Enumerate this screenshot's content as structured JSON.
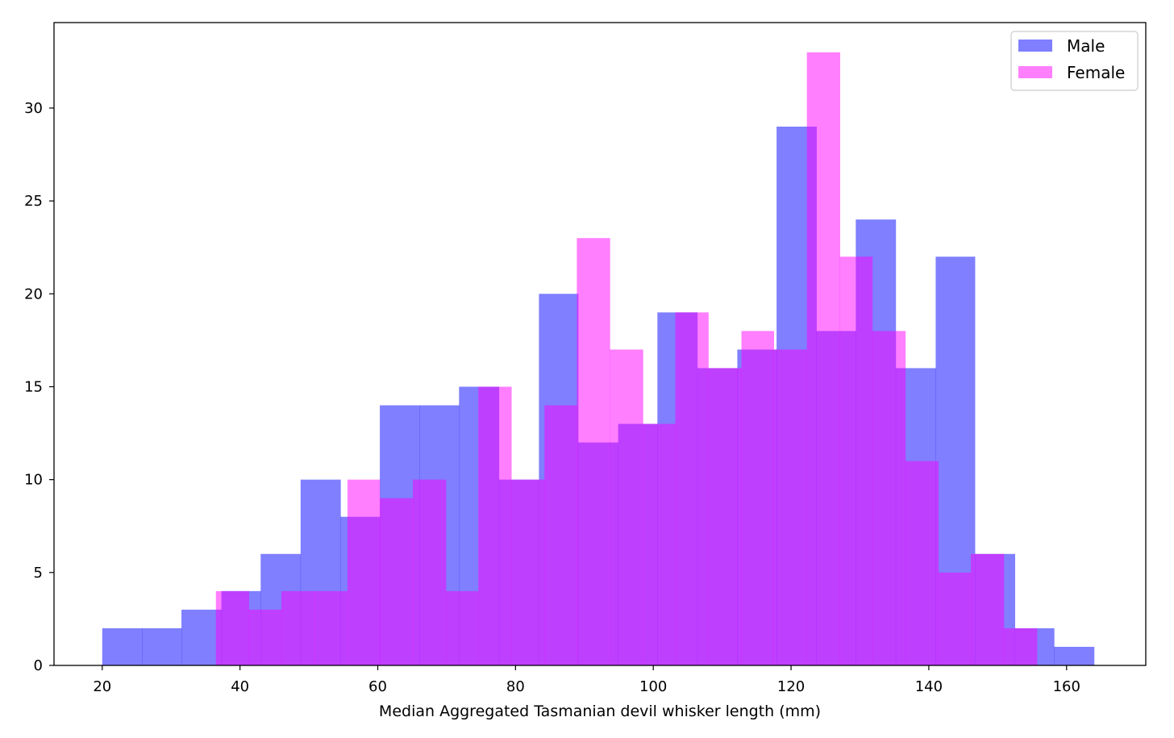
{
  "chart_data": {
    "type": "bar",
    "subtype": "overlapping-histogram",
    "title": "",
    "xlabel": "Median Aggregated Tasmanian devil whisker length (mm)",
    "ylabel": "",
    "xlim": [
      13,
      171.5
    ],
    "ylim": [
      0,
      34.6
    ],
    "xticks": [
      20,
      40,
      60,
      80,
      100,
      120,
      140,
      160
    ],
    "yticks": [
      0,
      5,
      10,
      15,
      20,
      25,
      30
    ],
    "grid": false,
    "legend_position": "top-right",
    "series": [
      {
        "name": "Male",
        "color": "#0000ff",
        "alpha": 0.5,
        "bin_edges": [
          20.0,
          25.8,
          31.5,
          37.3,
          43.0,
          48.8,
          54.6,
          60.3,
          66.1,
          71.8,
          77.6,
          83.4,
          89.1,
          94.9,
          100.6,
          106.4,
          112.2,
          117.9,
          123.7,
          129.4,
          135.2,
          141.0,
          146.7,
          152.5,
          158.2,
          164.0
        ],
        "counts": [
          2,
          2,
          3,
          4,
          6,
          10,
          8,
          14,
          14,
          15,
          10,
          20,
          12,
          13,
          19,
          16,
          17,
          29,
          18,
          24,
          16,
          22,
          6,
          2,
          1
        ]
      },
      {
        "name": "Female",
        "color": "#ff00ff",
        "alpha": 0.5,
        "bin_edges": [
          36.5,
          41.3,
          46.0,
          50.8,
          55.6,
          60.3,
          65.1,
          69.9,
          74.6,
          79.4,
          84.2,
          88.9,
          93.7,
          98.5,
          103.2,
          108.0,
          112.8,
          117.5,
          122.3,
          127.1,
          131.8,
          136.6,
          141.4,
          146.1,
          150.9,
          155.7
        ],
        "counts": [
          4,
          3,
          4,
          4,
          10,
          9,
          10,
          4,
          15,
          10,
          14,
          23,
          17,
          13,
          19,
          16,
          18,
          17,
          33,
          22,
          18,
          11,
          5,
          6,
          2
        ]
      }
    ]
  }
}
